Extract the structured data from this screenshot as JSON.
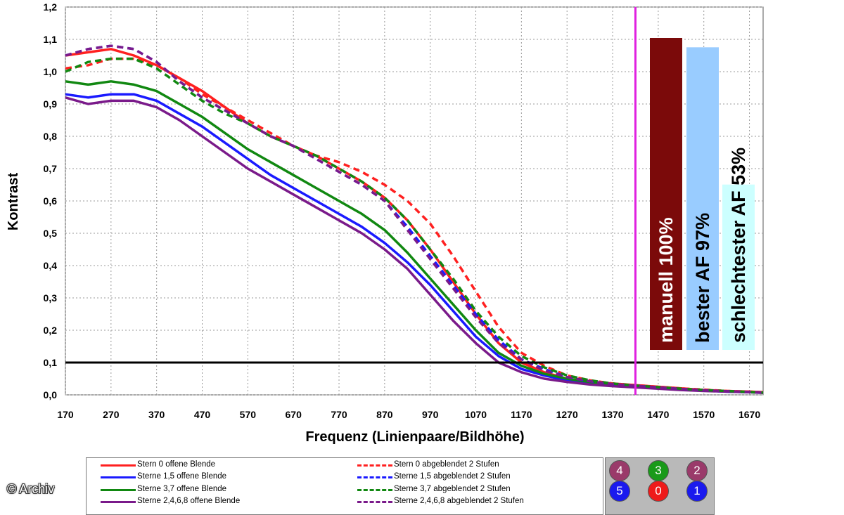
{
  "chart_data": {
    "type": "line",
    "xlabel": "Frequenz (Linienpaare/Bildhöhe)",
    "ylabel": "Kontrast",
    "xlim": [
      170,
      1700
    ],
    "ylim": [
      0.0,
      1.2
    ],
    "x_ticks": [
      "170",
      "270",
      "370",
      "470",
      "570",
      "670",
      "770",
      "870",
      "970",
      "1070",
      "1170",
      "1270",
      "1370",
      "1470",
      "1570",
      "1670"
    ],
    "y_ticks": [
      "0,0",
      "0,1",
      "0,2",
      "0,3",
      "0,4",
      "0,5",
      "0,6",
      "0,7",
      "0,8",
      "0,9",
      "1,0",
      "1,1",
      "1,2"
    ],
    "grid": true,
    "reference_line_y": 0.1,
    "marker_line_x": 1420,
    "x": [
      170,
      220,
      270,
      320,
      370,
      420,
      470,
      520,
      570,
      620,
      670,
      720,
      770,
      820,
      870,
      920,
      970,
      1020,
      1070,
      1120,
      1170,
      1220,
      1270,
      1320,
      1370,
      1420,
      1470,
      1520,
      1570,
      1620,
      1670,
      1700
    ],
    "series": [
      {
        "name": "Stern 0 offene Blende",
        "color": "#ff2020",
        "dash": false,
        "values": [
          1.05,
          1.06,
          1.07,
          1.05,
          1.02,
          0.98,
          0.94,
          0.89,
          0.84,
          0.8,
          0.77,
          0.74,
          0.7,
          0.66,
          0.61,
          0.54,
          0.45,
          0.35,
          0.25,
          0.16,
          0.1,
          0.07,
          0.05,
          0.04,
          0.035,
          0.03,
          0.025,
          0.02,
          0.015,
          0.012,
          0.01,
          0.008
        ]
      },
      {
        "name": "Sterne 1,5 offene Blende",
        "color": "#1a1aff",
        "dash": false,
        "values": [
          0.93,
          0.92,
          0.93,
          0.93,
          0.91,
          0.87,
          0.83,
          0.78,
          0.73,
          0.68,
          0.64,
          0.6,
          0.56,
          0.52,
          0.47,
          0.41,
          0.34,
          0.26,
          0.18,
          0.12,
          0.08,
          0.06,
          0.045,
          0.035,
          0.03,
          0.025,
          0.02,
          0.017,
          0.013,
          0.01,
          0.008,
          0.007
        ]
      },
      {
        "name": "Sterne 3,7 offene Blende",
        "color": "#118811",
        "dash": false,
        "values": [
          0.97,
          0.96,
          0.97,
          0.96,
          0.94,
          0.9,
          0.86,
          0.81,
          0.76,
          0.72,
          0.68,
          0.64,
          0.6,
          0.56,
          0.51,
          0.44,
          0.36,
          0.28,
          0.2,
          0.13,
          0.09,
          0.065,
          0.05,
          0.04,
          0.032,
          0.027,
          0.022,
          0.018,
          0.014,
          0.011,
          0.009,
          0.007
        ]
      },
      {
        "name": "Sterne 2,4,6,8 offene Blende",
        "color": "#7a1a8a",
        "dash": false,
        "values": [
          0.92,
          0.9,
          0.91,
          0.91,
          0.89,
          0.85,
          0.8,
          0.75,
          0.7,
          0.66,
          0.62,
          0.58,
          0.54,
          0.5,
          0.45,
          0.39,
          0.31,
          0.23,
          0.16,
          0.1,
          0.07,
          0.05,
          0.04,
          0.032,
          0.027,
          0.023,
          0.019,
          0.015,
          0.012,
          0.01,
          0.008,
          0.006
        ]
      },
      {
        "name": "Stern 0 abgeblendet 2 Stufen",
        "color": "#ff2020",
        "dash": true,
        "values": [
          1.01,
          1.02,
          1.04,
          1.04,
          1.02,
          0.98,
          0.93,
          0.89,
          0.85,
          0.81,
          0.77,
          0.74,
          0.72,
          0.69,
          0.65,
          0.6,
          0.53,
          0.43,
          0.32,
          0.21,
          0.13,
          0.09,
          0.06,
          0.045,
          0.035,
          0.03,
          0.025,
          0.02,
          0.016,
          0.012,
          0.01,
          0.008
        ]
      },
      {
        "name": "Sterne 1,5 abgeblendet 2 Stufen",
        "color": "#1a1aff",
        "dash": true,
        "values": [
          1.05,
          1.07,
          1.08,
          1.07,
          1.03,
          0.97,
          0.92,
          0.88,
          0.84,
          0.8,
          0.77,
          0.73,
          0.69,
          0.65,
          0.6,
          0.52,
          0.43,
          0.34,
          0.25,
          0.17,
          0.11,
          0.08,
          0.055,
          0.042,
          0.033,
          0.028,
          0.023,
          0.018,
          0.014,
          0.011,
          0.009,
          0.007
        ]
      },
      {
        "name": "Sterne 3,7 abgeblendet 2 Stufen",
        "color": "#118811",
        "dash": true,
        "values": [
          1.0,
          1.03,
          1.04,
          1.04,
          1.01,
          0.96,
          0.91,
          0.87,
          0.84,
          0.8,
          0.77,
          0.74,
          0.7,
          0.66,
          0.61,
          0.54,
          0.45,
          0.36,
          0.26,
          0.18,
          0.12,
          0.085,
          0.06,
          0.045,
          0.035,
          0.029,
          0.024,
          0.019,
          0.015,
          0.012,
          0.009,
          0.007
        ]
      },
      {
        "name": "Sterne 2,4,6,8 abgeblendet 2 Stufen",
        "color": "#7a1a8a",
        "dash": true,
        "values": [
          1.05,
          1.07,
          1.08,
          1.07,
          1.03,
          0.97,
          0.92,
          0.88,
          0.84,
          0.8,
          0.77,
          0.73,
          0.69,
          0.65,
          0.6,
          0.51,
          0.42,
          0.33,
          0.24,
          0.16,
          0.11,
          0.075,
          0.055,
          0.042,
          0.033,
          0.028,
          0.023,
          0.018,
          0.014,
          0.011,
          0.009,
          0.007
        ]
      }
    ],
    "bars": [
      {
        "label": "manuell 100%",
        "value": 100,
        "color": "#7b0a0a"
      },
      {
        "label": "bester AF 97%",
        "value": 97,
        "color": "#99ccff"
      },
      {
        "label": "schlechtester AF 53%",
        "value": 53,
        "color": "#ccffff"
      }
    ],
    "legend_placement": "bottom"
  },
  "keypad": {
    "keys": [
      {
        "label": "4",
        "color": "#9a3a6a"
      },
      {
        "label": "3",
        "color": "#1a9a1a"
      },
      {
        "label": "2",
        "color": "#9a3a6a"
      },
      {
        "label": "5",
        "color": "#1a1aee"
      },
      {
        "label": "0",
        "color": "#ee1a1a"
      },
      {
        "label": "1",
        "color": "#1a1aee"
      }
    ]
  },
  "watermark": "© Archiv"
}
